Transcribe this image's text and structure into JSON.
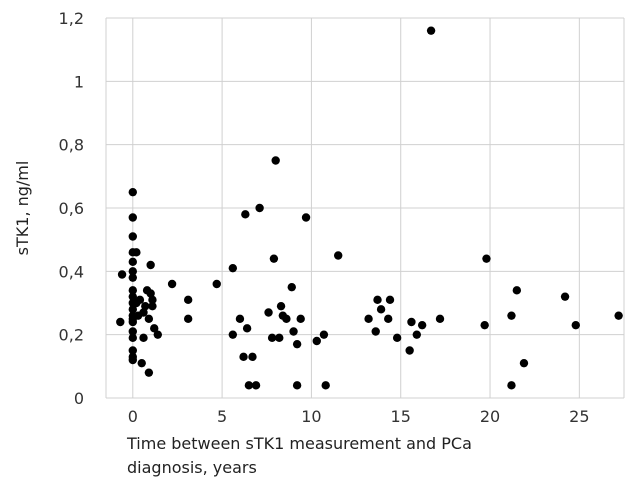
{
  "chart_data": {
    "type": "scatter",
    "title": "",
    "xlabel_lines": [
      "Time between sTK1 measurement and PCa",
      "diagnosis, years"
    ],
    "ylabel": "sTK1, ng/ml",
    "xlim": [
      -1.5,
      27.5
    ],
    "ylim": [
      0,
      1.2
    ],
    "x_ticks": [
      0,
      5,
      10,
      15,
      20,
      25
    ],
    "x_tick_labels": [
      "0",
      "5",
      "10",
      "15",
      "20",
      "25"
    ],
    "y_ticks": [
      0,
      0.2,
      0.4,
      0.6,
      0.8,
      1.0,
      1.2
    ],
    "y_tick_labels": [
      "0",
      "0,2",
      "0,4",
      "0,6",
      "0,8",
      "1",
      "1,2"
    ],
    "grid": true,
    "marker_color": "#000000",
    "grid_color": "#d0d0d0",
    "points": [
      [
        -0.7,
        0.24
      ],
      [
        -0.6,
        0.39
      ],
      [
        0.0,
        0.65
      ],
      [
        0.0,
        0.57
      ],
      [
        0.0,
        0.51
      ],
      [
        0.0,
        0.46
      ],
      [
        0.0,
        0.43
      ],
      [
        0.0,
        0.4
      ],
      [
        0.0,
        0.38
      ],
      [
        0.0,
        0.34
      ],
      [
        0.0,
        0.32
      ],
      [
        0.0,
        0.3
      ],
      [
        0.0,
        0.28
      ],
      [
        0.0,
        0.26
      ],
      [
        0.0,
        0.25
      ],
      [
        0.0,
        0.24
      ],
      [
        0.0,
        0.21
      ],
      [
        0.0,
        0.19
      ],
      [
        0.0,
        0.15
      ],
      [
        0.0,
        0.13
      ],
      [
        0.0,
        0.12
      ],
      [
        0.2,
        0.46
      ],
      [
        0.2,
        0.3
      ],
      [
        0.3,
        0.26
      ],
      [
        0.4,
        0.31
      ],
      [
        0.5,
        0.11
      ],
      [
        0.6,
        0.27
      ],
      [
        0.6,
        0.19
      ],
      [
        0.7,
        0.29
      ],
      [
        0.8,
        0.34
      ],
      [
        0.9,
        0.25
      ],
      [
        0.9,
        0.08
      ],
      [
        1.0,
        0.42
      ],
      [
        1.0,
        0.33
      ],
      [
        1.1,
        0.29
      ],
      [
        1.1,
        0.31
      ],
      [
        1.2,
        0.22
      ],
      [
        1.4,
        0.2
      ],
      [
        2.2,
        0.36
      ],
      [
        3.1,
        0.31
      ],
      [
        3.1,
        0.25
      ],
      [
        4.7,
        0.36
      ],
      [
        5.6,
        0.41
      ],
      [
        5.6,
        0.2
      ],
      [
        6.0,
        0.25
      ],
      [
        6.2,
        0.13
      ],
      [
        6.3,
        0.58
      ],
      [
        6.4,
        0.22
      ],
      [
        6.5,
        0.04
      ],
      [
        6.7,
        0.13
      ],
      [
        6.9,
        0.04
      ],
      [
        7.1,
        0.6
      ],
      [
        7.6,
        0.27
      ],
      [
        7.8,
        0.19
      ],
      [
        7.9,
        0.44
      ],
      [
        8.0,
        0.75
      ],
      [
        8.2,
        0.19
      ],
      [
        8.3,
        0.29
      ],
      [
        8.4,
        0.26
      ],
      [
        8.6,
        0.25
      ],
      [
        8.9,
        0.35
      ],
      [
        9.0,
        0.21
      ],
      [
        9.2,
        0.17
      ],
      [
        9.2,
        0.04
      ],
      [
        9.4,
        0.25
      ],
      [
        9.7,
        0.57
      ],
      [
        10.3,
        0.18
      ],
      [
        10.7,
        0.2
      ],
      [
        10.8,
        0.04
      ],
      [
        11.5,
        0.45
      ],
      [
        13.2,
        0.25
      ],
      [
        13.6,
        0.21
      ],
      [
        13.7,
        0.31
      ],
      [
        13.9,
        0.28
      ],
      [
        14.3,
        0.25
      ],
      [
        14.4,
        0.31
      ],
      [
        14.8,
        0.19
      ],
      [
        15.5,
        0.15
      ],
      [
        15.6,
        0.24
      ],
      [
        15.9,
        0.2
      ],
      [
        16.2,
        0.23
      ],
      [
        16.7,
        1.16
      ],
      [
        17.2,
        0.25
      ],
      [
        19.7,
        0.23
      ],
      [
        19.8,
        0.44
      ],
      [
        21.2,
        0.26
      ],
      [
        21.2,
        0.04
      ],
      [
        21.5,
        0.34
      ],
      [
        21.9,
        0.11
      ],
      [
        24.2,
        0.32
      ],
      [
        24.8,
        0.23
      ],
      [
        27.2,
        0.26
      ]
    ]
  }
}
